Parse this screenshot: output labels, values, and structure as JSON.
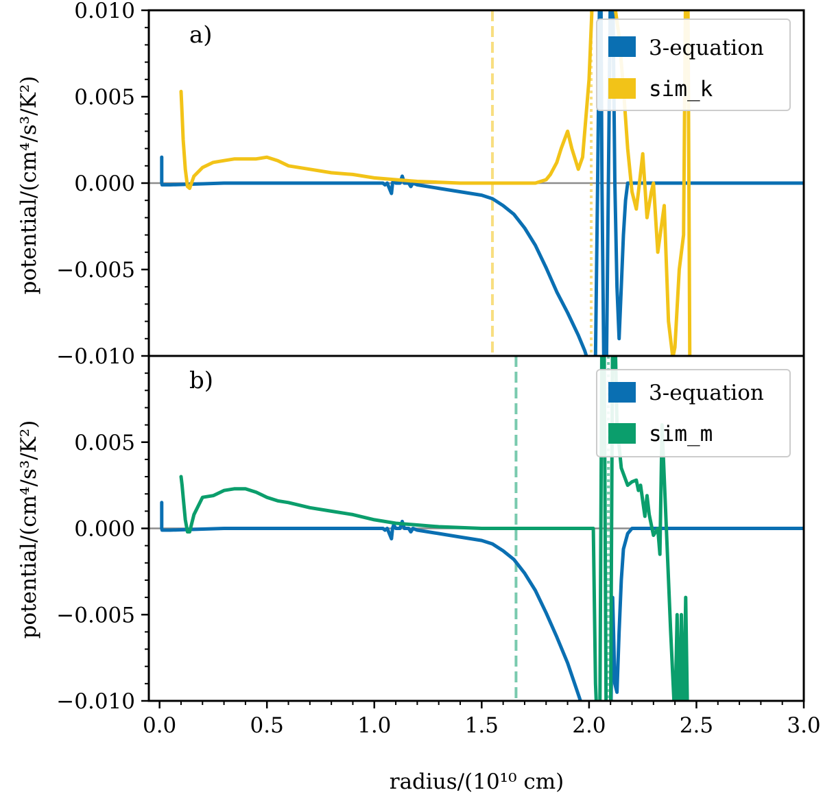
{
  "colors": {
    "three_eq": "#0a6fb2",
    "sim_k": "#f2c318",
    "sim_m": "#0b9e6c",
    "zero_line": "#8c8c8c",
    "frame": "#000000"
  },
  "chart_data": [
    {
      "type": "line",
      "panel_label": "a)",
      "xlabel": "",
      "ylabel": "potential/(cm⁴/s³/K²)",
      "xlim": [
        -0.05,
        3.0
      ],
      "ylim": [
        -0.01,
        0.01
      ],
      "xticks": [
        0.0,
        0.5,
        1.0,
        1.5,
        2.0,
        2.5,
        3.0
      ],
      "yticks": [
        -0.01,
        -0.005,
        0.0,
        0.005,
        0.01
      ],
      "ytick_labels": [
        "−0.010",
        "−0.005",
        "0.000",
        "0.005",
        "0.010"
      ],
      "legend_position": "top-right",
      "series": [
        {
          "name": "3-equation",
          "color_key": "three_eq",
          "x": [
            0.01,
            0.01,
            0.012,
            0.05,
            0.3,
            0.6,
            0.9,
            1.04,
            1.05,
            1.06,
            1.08,
            1.085,
            1.09,
            1.1,
            1.12,
            1.13,
            1.14,
            1.16,
            1.17,
            1.18,
            1.2,
            1.3,
            1.4,
            1.5,
            1.55,
            1.6,
            1.65,
            1.7,
            1.75,
            1.8,
            1.85,
            1.9,
            1.95,
            1.98,
            2.0,
            2.02,
            2.03,
            2.04,
            2.05,
            2.055,
            2.06,
            2.07,
            2.08,
            2.09,
            2.1,
            2.11,
            2.12,
            2.13,
            2.14,
            2.15,
            2.16,
            2.17,
            2.18,
            2.19,
            2.2,
            2.25,
            2.3,
            2.5,
            2.8,
            3.0
          ],
          "y": [
            0.0015,
            0.0,
            -0.0001,
            -0.0001,
            0.0,
            0.0,
            0.0,
            0.0,
            -0.0001,
            0.0,
            -0.0006,
            0.0,
            0.0002,
            0.0,
            0.0,
            0.0004,
            0.0,
            0.0,
            -0.0002,
            0.0,
            -0.0001,
            -0.0003,
            -0.0005,
            -0.0007,
            -0.0009,
            -0.0013,
            -0.0018,
            -0.0026,
            -0.0036,
            -0.0049,
            -0.0063,
            -0.0075,
            -0.0088,
            -0.0097,
            -0.0105,
            -0.0115,
            -0.01,
            0.0,
            0.012,
            0.012,
            0.0,
            -0.012,
            -0.012,
            0.0,
            0.012,
            0.012,
            0.0,
            -0.006,
            -0.009,
            -0.006,
            -0.003,
            -0.001,
            0.0,
            0.0,
            0.0,
            0.0,
            0.0,
            0.0,
            0.0,
            0.0
          ]
        },
        {
          "name": "sim_k",
          "color_key": "sim_k",
          "x": [
            0.1,
            0.105,
            0.11,
            0.12,
            0.13,
            0.14,
            0.16,
            0.2,
            0.25,
            0.3,
            0.35,
            0.4,
            0.45,
            0.5,
            0.55,
            0.6,
            0.7,
            0.8,
            0.9,
            1.0,
            1.1,
            1.2,
            1.3,
            1.4,
            1.5,
            1.6,
            1.7,
            1.75,
            1.8,
            1.82,
            1.85,
            1.87,
            1.9,
            1.92,
            1.95,
            1.97,
            2.0,
            2.02,
            2.03,
            2.1,
            2.14,
            2.16,
            2.18,
            2.2,
            2.22,
            2.23,
            2.25,
            2.27,
            2.29,
            2.3,
            2.32,
            2.35,
            2.37,
            2.39,
            2.4,
            2.42,
            2.44,
            2.45,
            2.46,
            2.47,
            2.48
          ],
          "y": [
            0.0053,
            0.004,
            0.0025,
            0.0008,
            -0.0002,
            -0.0003,
            0.0004,
            0.0009,
            0.0012,
            0.0013,
            0.0014,
            0.0014,
            0.0014,
            0.0015,
            0.0013,
            0.001,
            0.0008,
            0.0006,
            0.0005,
            0.0003,
            0.0002,
            0.0001,
            5e-05,
            0.0,
            0.0,
            0.0,
            0.0,
            0.0,
            0.0002,
            0.0005,
            0.0012,
            0.002,
            0.003,
            0.002,
            0.0008,
            0.0015,
            0.006,
            0.012,
            0.012,
            0.012,
            0.0085,
            0.0055,
            0.002,
            -0.0005,
            -0.0015,
            -0.0005,
            0.0017,
            -0.002,
            -0.0005,
            0.0,
            -0.004,
            -0.0013,
            -0.008,
            -0.0101,
            -0.0095,
            -0.005,
            -0.003,
            0.012,
            0.012,
            -0.012,
            -0.012
          ]
        }
      ],
      "vlines": [
        {
          "x": 1.55,
          "style": "dashed",
          "color_key": "sim_k"
        },
        {
          "x": 2.01,
          "style": "dotted",
          "color_key": "sim_k"
        }
      ]
    },
    {
      "type": "line",
      "panel_label": "b)",
      "xlabel": "radius/(10¹⁰ cm)",
      "ylabel": "potential/(cm⁴/s³/K²)",
      "xlim": [
        -0.05,
        3.0
      ],
      "ylim": [
        -0.01,
        0.01
      ],
      "xticks": [
        0.0,
        0.5,
        1.0,
        1.5,
        2.0,
        2.5,
        3.0
      ],
      "xtick_labels": [
        "0.0",
        "0.5",
        "1.0",
        "1.5",
        "2.0",
        "2.5",
        "3.0"
      ],
      "yticks": [
        -0.01,
        -0.005,
        0.0,
        0.005
      ],
      "ytick_labels": [
        "−0.010",
        "−0.005",
        "0.000",
        "0.005"
      ],
      "legend_position": "top-right",
      "series": [
        {
          "name": "3-equation",
          "color_key": "three_eq",
          "x": [
            0.01,
            0.01,
            0.012,
            0.05,
            0.3,
            0.6,
            0.9,
            1.04,
            1.05,
            1.06,
            1.08,
            1.085,
            1.09,
            1.1,
            1.12,
            1.13,
            1.14,
            1.16,
            1.17,
            1.18,
            1.2,
            1.3,
            1.4,
            1.5,
            1.55,
            1.6,
            1.65,
            1.7,
            1.75,
            1.8,
            1.85,
            1.9,
            1.93,
            1.96,
            1.98,
            2.0,
            2.02,
            2.04,
            2.06,
            2.08,
            2.1,
            2.11,
            2.12,
            2.13,
            2.14,
            2.15,
            2.16,
            2.18,
            2.2,
            2.22,
            2.25,
            2.5,
            2.8,
            3.0
          ],
          "y": [
            0.0015,
            0.0,
            -0.0001,
            -0.0001,
            0.0,
            0.0,
            0.0,
            0.0,
            -0.0001,
            0.0,
            -0.0006,
            0.0,
            0.0002,
            0.0,
            0.0,
            0.0004,
            0.0,
            0.0,
            -0.0002,
            0.0,
            -0.0001,
            -0.0003,
            -0.0005,
            -0.0007,
            -0.0009,
            -0.0013,
            -0.0018,
            -0.0026,
            -0.0036,
            -0.0049,
            -0.0063,
            -0.0078,
            -0.0089,
            -0.01,
            -0.0115,
            -0.012,
            -0.012,
            -0.012,
            -0.012,
            -0.012,
            -0.012,
            -0.004,
            -0.009,
            -0.0095,
            -0.006,
            -0.003,
            -0.0012,
            -0.0003,
            0.0,
            0.0,
            0.0,
            0.0,
            0.0,
            0.0
          ]
        },
        {
          "name": "sim_m",
          "color_key": "sim_m",
          "x": [
            0.1,
            0.105,
            0.11,
            0.12,
            0.13,
            0.14,
            0.16,
            0.2,
            0.25,
            0.3,
            0.35,
            0.4,
            0.45,
            0.5,
            0.55,
            0.6,
            0.7,
            0.8,
            0.9,
            1.0,
            1.1,
            1.2,
            1.3,
            1.4,
            1.5,
            1.6,
            1.7,
            1.8,
            1.9,
            2.0,
            2.02,
            2.03,
            2.04,
            2.05,
            2.06,
            2.07,
            2.08,
            2.1,
            2.11,
            2.12,
            2.13,
            2.15,
            2.18,
            2.2,
            2.22,
            2.23,
            2.24,
            2.26,
            2.27,
            2.28,
            2.3,
            2.32,
            2.33,
            2.34,
            2.36,
            2.38,
            2.4,
            2.41,
            2.42,
            2.43,
            2.44,
            2.45,
            2.46,
            2.47,
            2.48
          ],
          "y": [
            0.003,
            0.0025,
            0.0018,
            0.0005,
            -0.0002,
            -0.0002,
            0.0008,
            0.0018,
            0.0019,
            0.0022,
            0.0023,
            0.0023,
            0.0021,
            0.0018,
            0.0016,
            0.0015,
            0.0012,
            0.001,
            0.0008,
            0.0005,
            0.0003,
            0.0002,
            0.0001,
            5e-05,
            0.0,
            0.0,
            0.0,
            0.0,
            0.0,
            0.0,
            0.0,
            -0.009,
            -0.012,
            -0.012,
            0.012,
            0.012,
            -0.012,
            -0.012,
            0.012,
            0.012,
            0.006,
            0.0035,
            0.0025,
            0.0027,
            0.0028,
            0.0022,
            0.0025,
            0.0007,
            0.0019,
            0.0008,
            -0.0004,
            0.0,
            -0.0015,
            0.006,
            0.0,
            -0.006,
            -0.0112,
            -0.005,
            -0.012,
            -0.005,
            -0.012,
            -0.004,
            -0.012,
            -0.012,
            -0.012
          ]
        }
      ],
      "vlines": [
        {
          "x": 1.66,
          "style": "dashed",
          "color_key": "sim_m"
        },
        {
          "x": 2.09,
          "style": "dotted",
          "color_key": "sim_m"
        }
      ]
    }
  ]
}
